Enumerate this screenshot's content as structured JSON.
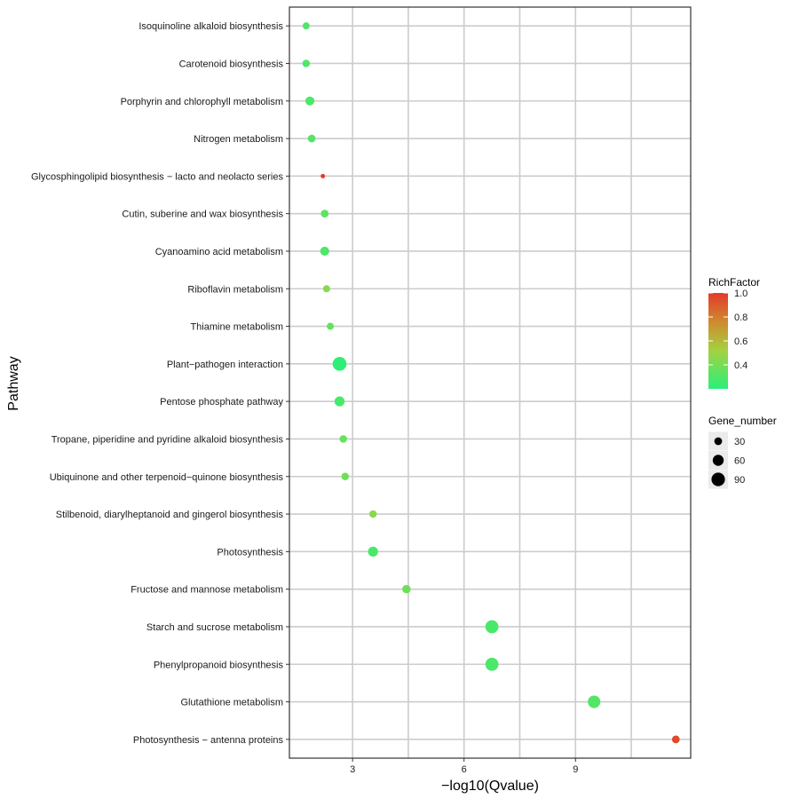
{
  "chart_data": {
    "type": "scatter",
    "xlabel": "−log10(Qvalue)",
    "ylabel": "Pathway",
    "xlim": [
      1.3,
      12.1
    ],
    "x_ticks": [
      3,
      6,
      9
    ],
    "x_gridlines": [
      3,
      4.5,
      6,
      7.5,
      9,
      10.5
    ],
    "grid": true,
    "categories": [
      "Isoquinoline alkaloid biosynthesis",
      "Carotenoid biosynthesis",
      "Porphyrin and chlorophyll metabolism",
      "Nitrogen metabolism",
      "Glycosphingolipid biosynthesis − lacto and neolacto series",
      "Cutin, suberine and wax biosynthesis",
      "Cyanoamino acid metabolism",
      "Riboflavin metabolism",
      "Thiamine metabolism",
      "Plant−pathogen interaction",
      "Pentose phosphate pathway",
      "Tropane, piperidine and pyridine alkaloid biosynthesis",
      "Ubiquinone and other terpenoid−quinone biosynthesis",
      "Stilbenoid, diarylheptanoid and gingerol biosynthesis",
      "Photosynthesis",
      "Fructose and mannose metabolism",
      "Starch and sucrose metabolism",
      "Phenylpropanoid biosynthesis",
      "Glutathione metabolism",
      "Photosynthesis − antenna proteins"
    ],
    "points": [
      {
        "x": 1.75,
        "rich_factor": 0.3,
        "gene_number": 25
      },
      {
        "x": 1.75,
        "rich_factor": 0.3,
        "gene_number": 28
      },
      {
        "x": 1.85,
        "rich_factor": 0.29,
        "gene_number": 40
      },
      {
        "x": 1.9,
        "rich_factor": 0.31,
        "gene_number": 30
      },
      {
        "x": 2.2,
        "rich_factor": 1.0,
        "gene_number": 8
      },
      {
        "x": 2.25,
        "rich_factor": 0.34,
        "gene_number": 30
      },
      {
        "x": 2.25,
        "rich_factor": 0.3,
        "gene_number": 40
      },
      {
        "x": 2.3,
        "rich_factor": 0.44,
        "gene_number": 25
      },
      {
        "x": 2.4,
        "rich_factor": 0.35,
        "gene_number": 25
      },
      {
        "x": 2.65,
        "rich_factor": 0.21,
        "gene_number": 95
      },
      {
        "x": 2.65,
        "rich_factor": 0.28,
        "gene_number": 50
      },
      {
        "x": 2.75,
        "rich_factor": 0.36,
        "gene_number": 28
      },
      {
        "x": 2.8,
        "rich_factor": 0.38,
        "gene_number": 28
      },
      {
        "x": 3.55,
        "rich_factor": 0.45,
        "gene_number": 28
      },
      {
        "x": 3.55,
        "rich_factor": 0.28,
        "gene_number": 50
      },
      {
        "x": 4.45,
        "rich_factor": 0.38,
        "gene_number": 35
      },
      {
        "x": 6.75,
        "rich_factor": 0.28,
        "gene_number": 85
      },
      {
        "x": 6.75,
        "rich_factor": 0.29,
        "gene_number": 85
      },
      {
        "x": 9.5,
        "rich_factor": 0.31,
        "gene_number": 78
      },
      {
        "x": 11.7,
        "rich_factor": 0.95,
        "gene_number": 30
      }
    ],
    "color_legend": {
      "title": "RichFactor",
      "range": [
        0.2,
        1.0
      ],
      "ticks": [
        "1.0",
        "0.8",
        "0.6",
        "0.4"
      ],
      "colors": [
        "#29f07a",
        "#e23a2a"
      ]
    },
    "size_legend": {
      "title": "Gene_number",
      "values": [
        30,
        60,
        90
      ],
      "labels": [
        "30",
        "60",
        "90"
      ],
      "color": "#000000"
    }
  }
}
